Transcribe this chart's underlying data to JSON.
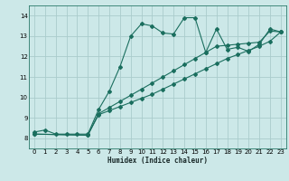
{
  "xlabel": "Humidex (Indice chaleur)",
  "background_color": "#cce8e8",
  "grid_color": "#aacccc",
  "line_color": "#1a6e5e",
  "xlim": [
    -0.5,
    23.5
  ],
  "ylim": [
    7.5,
    14.5
  ],
  "xticks": [
    0,
    1,
    2,
    3,
    4,
    5,
    6,
    7,
    8,
    9,
    10,
    11,
    12,
    13,
    14,
    15,
    16,
    17,
    18,
    19,
    20,
    21,
    22,
    23
  ],
  "yticks": [
    8,
    9,
    10,
    11,
    12,
    13,
    14
  ],
  "series1_x": [
    0,
    1,
    2,
    3,
    4,
    5,
    6,
    7,
    8,
    9,
    10,
    11,
    12,
    13,
    14,
    15,
    16,
    17,
    18,
    19,
    20,
    21,
    22,
    23
  ],
  "series1_y": [
    8.3,
    8.4,
    8.2,
    8.2,
    8.2,
    8.2,
    9.4,
    10.3,
    11.5,
    13.0,
    13.6,
    13.5,
    13.15,
    13.1,
    13.9,
    13.9,
    12.2,
    13.35,
    12.35,
    12.45,
    12.25,
    12.6,
    13.35,
    13.2
  ],
  "series2_x": [
    0,
    5,
    6,
    7,
    8,
    9,
    10,
    11,
    12,
    13,
    14,
    15,
    16,
    17,
    18,
    19,
    20,
    21,
    22,
    23
  ],
  "series2_y": [
    8.2,
    8.15,
    9.2,
    9.5,
    9.8,
    10.1,
    10.4,
    10.7,
    11.0,
    11.3,
    11.6,
    11.9,
    12.2,
    12.5,
    12.55,
    12.6,
    12.65,
    12.7,
    13.25,
    13.2
  ],
  "series3_x": [
    0,
    5,
    6,
    7,
    8,
    9,
    10,
    11,
    12,
    13,
    14,
    15,
    16,
    17,
    18,
    19,
    20,
    21,
    22,
    23
  ],
  "series3_y": [
    8.2,
    8.15,
    9.15,
    9.35,
    9.55,
    9.75,
    9.95,
    10.15,
    10.4,
    10.65,
    10.9,
    11.15,
    11.4,
    11.65,
    11.9,
    12.1,
    12.3,
    12.5,
    12.75,
    13.2
  ]
}
